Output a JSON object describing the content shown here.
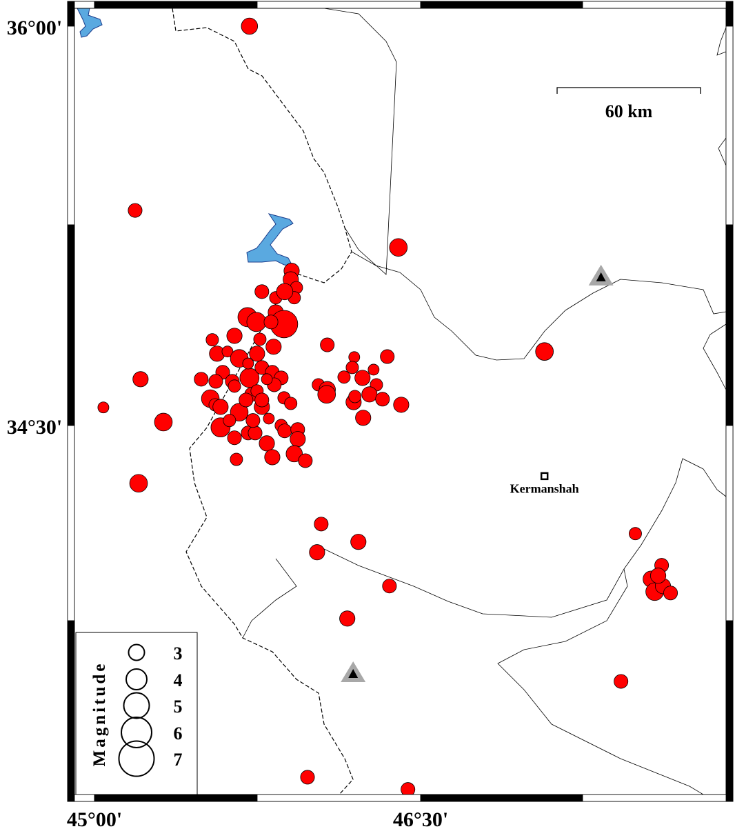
{
  "map": {
    "extent_lon": [
      44.88,
      47.89
    ],
    "extent_lat": [
      33.09,
      36.1
    ],
    "lon_ticks": [
      {
        "value": 45.0,
        "label": "45°00'"
      },
      {
        "value": 46.5,
        "label": "46°30'"
      }
    ],
    "lat_ticks": [
      {
        "value": 36.0,
        "label": "36°00'"
      },
      {
        "value": 34.5,
        "label": "34°30'"
      }
    ],
    "scale_bar": {
      "label": "60 km",
      "length_km": 60
    },
    "city": {
      "name": "Kermanshah",
      "lon": 47.07,
      "lat": 34.31
    },
    "stations": [
      {
        "lon": 47.33,
        "lat": 35.06
      },
      {
        "lon": 46.19,
        "lat": 33.57
      }
    ],
    "colors": {
      "event": "#ff0000",
      "lake": "#5aa9e0",
      "station": "#a8a8a8"
    }
  },
  "legend": {
    "title": "Magnitude",
    "items": [
      {
        "mag": 3,
        "label": "3"
      },
      {
        "mag": 4,
        "label": "4"
      },
      {
        "mag": 5,
        "label": "5"
      },
      {
        "mag": 6,
        "label": "6"
      },
      {
        "mag": 7,
        "label": "7"
      }
    ]
  },
  "events": [
    [
      45.713,
      36.0,
      3.1
    ],
    [
      45.187,
      35.308,
      2.6
    ],
    [
      46.398,
      35.169,
      3.4
    ],
    [
      45.212,
      34.674,
      2.9
    ],
    [
      45.041,
      34.568,
      2.0
    ],
    [
      45.317,
      34.513,
      3.4
    ],
    [
      45.203,
      34.283,
      3.4
    ],
    [
      46.071,
      34.803,
      2.6
    ],
    [
      47.07,
      34.778,
      3.4
    ],
    [
      46.043,
      34.13,
      2.6
    ],
    [
      46.214,
      34.063,
      2.9
    ],
    [
      46.024,
      34.024,
      2.9
    ],
    [
      46.357,
      33.897,
      2.6
    ],
    [
      46.163,
      33.775,
      2.9
    ],
    [
      47.488,
      34.094,
      2.3
    ],
    [
      47.609,
      33.975,
      2.6
    ],
    [
      47.561,
      33.923,
      3.1
    ],
    [
      47.577,
      33.876,
      3.4
    ],
    [
      47.615,
      33.897,
      2.9
    ],
    [
      47.65,
      33.871,
      2.6
    ],
    [
      47.593,
      33.936,
      2.9
    ],
    [
      47.422,
      33.539,
      2.6
    ],
    [
      45.98,
      33.179,
      2.6
    ],
    [
      46.442,
      33.133,
      2.6
    ],
    [
      46.03,
      34.653,
      2.3
    ],
    [
      46.071,
      34.635,
      3.1
    ],
    [
      46.068,
      34.617,
      3.4
    ],
    [
      46.148,
      34.682,
      2.3
    ],
    [
      46.195,
      34.757,
      2.0
    ],
    [
      46.186,
      34.718,
      2.3
    ],
    [
      46.233,
      34.679,
      2.9
    ],
    [
      46.284,
      34.71,
      2.0
    ],
    [
      46.297,
      34.653,
      2.3
    ],
    [
      46.265,
      34.617,
      2.9
    ],
    [
      46.347,
      34.759,
      2.6
    ],
    [
      46.325,
      34.599,
      2.6
    ],
    [
      46.411,
      34.578,
      2.9
    ],
    [
      46.192,
      34.588,
      2.9
    ],
    [
      46.236,
      34.529,
      2.9
    ],
    [
      46.198,
      34.609,
      2.3
    ],
    [
      45.907,
      35.081,
      2.9
    ],
    [
      45.903,
      35.049,
      2.9
    ],
    [
      45.929,
      35.018,
      2.3
    ],
    [
      45.77,
      35.003,
      2.6
    ],
    [
      45.834,
      34.98,
      2.3
    ],
    [
      45.919,
      34.98,
      2.3
    ],
    [
      45.875,
      35.003,
      3.1
    ],
    [
      45.704,
      34.907,
      3.7
    ],
    [
      45.745,
      34.889,
      3.7
    ],
    [
      45.834,
      34.925,
      2.9
    ],
    [
      45.872,
      34.881,
      5.4
    ],
    [
      45.812,
      34.889,
      2.6
    ],
    [
      45.644,
      34.837,
      2.9
    ],
    [
      45.761,
      34.824,
      2.3
    ],
    [
      45.824,
      34.796,
      2.9
    ],
    [
      45.542,
      34.822,
      2.3
    ],
    [
      45.564,
      34.77,
      2.9
    ],
    [
      45.612,
      34.778,
      2.0
    ],
    [
      45.666,
      34.752,
      3.4
    ],
    [
      45.748,
      34.77,
      2.9
    ],
    [
      45.59,
      34.7,
      2.6
    ],
    [
      45.713,
      34.679,
      3.7
    ],
    [
      45.77,
      34.718,
      2.6
    ],
    [
      45.818,
      34.7,
      2.6
    ],
    [
      45.859,
      34.679,
      2.6
    ],
    [
      45.827,
      34.653,
      2.6
    ],
    [
      45.793,
      34.674,
      2.0
    ],
    [
      45.491,
      34.674,
      2.6
    ],
    [
      45.558,
      34.666,
      2.6
    ],
    [
      45.634,
      34.666,
      2.6
    ],
    [
      45.533,
      34.601,
      3.4
    ],
    [
      45.555,
      34.578,
      2.3
    ],
    [
      45.58,
      34.57,
      2.9
    ],
    [
      45.666,
      34.55,
      3.4
    ],
    [
      45.723,
      34.617,
      2.6
    ],
    [
      45.77,
      34.57,
      2.9
    ],
    [
      45.802,
      34.526,
      2.0
    ],
    [
      45.872,
      34.604,
      2.3
    ],
    [
      45.903,
      34.583,
      2.3
    ],
    [
      45.58,
      34.493,
      3.7
    ],
    [
      45.644,
      34.454,
      2.6
    ],
    [
      45.707,
      34.472,
      2.6
    ],
    [
      45.739,
      34.472,
      2.6
    ],
    [
      45.793,
      34.433,
      2.9
    ],
    [
      45.859,
      34.5,
      2.3
    ],
    [
      45.875,
      34.48,
      2.6
    ],
    [
      45.935,
      34.485,
      2.6
    ],
    [
      45.935,
      34.449,
      2.9
    ],
    [
      45.818,
      34.381,
      2.9
    ],
    [
      45.919,
      34.394,
      3.1
    ],
    [
      45.97,
      34.368,
      2.6
    ],
    [
      45.653,
      34.373,
      2.3
    ],
    [
      45.729,
      34.519,
      2.6
    ],
    [
      45.621,
      34.519,
      2.3
    ],
    [
      45.697,
      34.596,
      2.6
    ],
    [
      45.748,
      34.63,
      2.3
    ],
    [
      45.644,
      34.648,
      2.3
    ],
    [
      45.707,
      34.733,
      2.0
    ],
    [
      45.77,
      34.596,
      2.6
    ]
  ]
}
